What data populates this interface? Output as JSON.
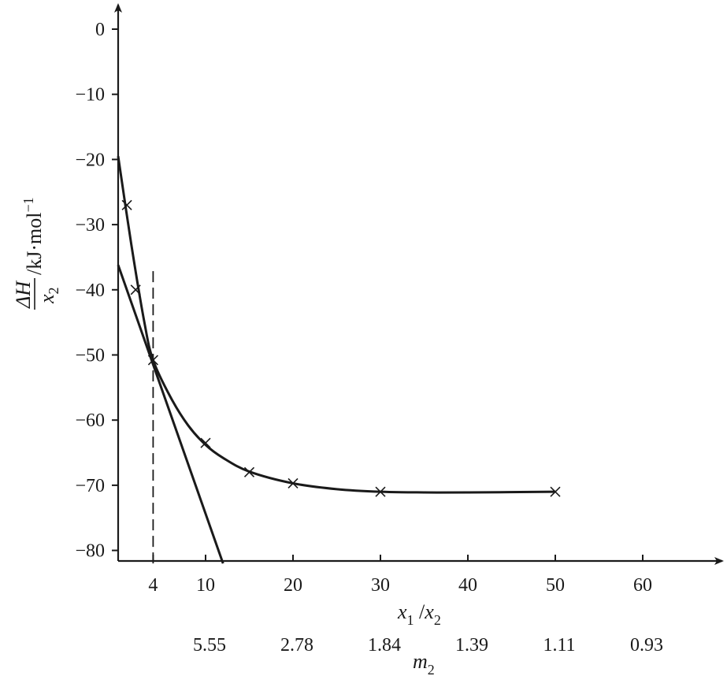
{
  "chart_data": {
    "type": "scatter",
    "xlim": [
      0,
      70
    ],
    "ylim": [
      -82,
      5
    ],
    "x_ticks": [
      4,
      10,
      20,
      30,
      40,
      50,
      60
    ],
    "x_tick_labels": [
      "4",
      "10",
      "20",
      "30",
      "40",
      "50",
      "60"
    ],
    "y_ticks": [
      0,
      -10,
      -20,
      -30,
      -40,
      -50,
      -60,
      -70,
      -80
    ],
    "y_tick_labels": [
      "0",
      "−10",
      "−20",
      "−30",
      "−40",
      "−50",
      "−60",
      "−70",
      "−80"
    ],
    "xlabel": {
      "x1": "x",
      "sub1": "1",
      "sep": " /",
      "x2": "x",
      "sub2": "2"
    },
    "ylabel": {
      "num": "ΔH",
      "den": "x",
      "den_sub": "2",
      "unit": "/kJ·mol",
      "unit_sup": "−1"
    },
    "secondary_axis": {
      "name_main": "m",
      "name_sub": "2",
      "positions_x1x2": [
        10,
        20,
        30,
        40,
        50,
        60
      ],
      "labels": [
        "5.55",
        "2.78",
        "1.84",
        "1.39",
        "1.11",
        "0.93"
      ]
    },
    "points": {
      "x": [
        1,
        2,
        4,
        10,
        15,
        20,
        30,
        50
      ],
      "y": [
        -27,
        -40,
        -50.8,
        -63.5,
        -68,
        -69.7,
        -71,
        -71
      ]
    },
    "curve": {
      "x": [
        0,
        1.5,
        3,
        4,
        6,
        8,
        10,
        12,
        15,
        20,
        25,
        30,
        35,
        40,
        50
      ],
      "y": [
        -19.5,
        -33,
        -45,
        -50.8,
        -56.5,
        -60.8,
        -63.8,
        -65.8,
        -67.9,
        -69.7,
        -70.6,
        -71.0,
        -71.1,
        -71.1,
        -71.0
      ]
    },
    "tangent": {
      "x": [
        0,
        12
      ],
      "y": [
        -36.2,
        -82
      ]
    },
    "dashed_line": {
      "x": 4,
      "y_from": -82,
      "y_to": -37
    }
  }
}
